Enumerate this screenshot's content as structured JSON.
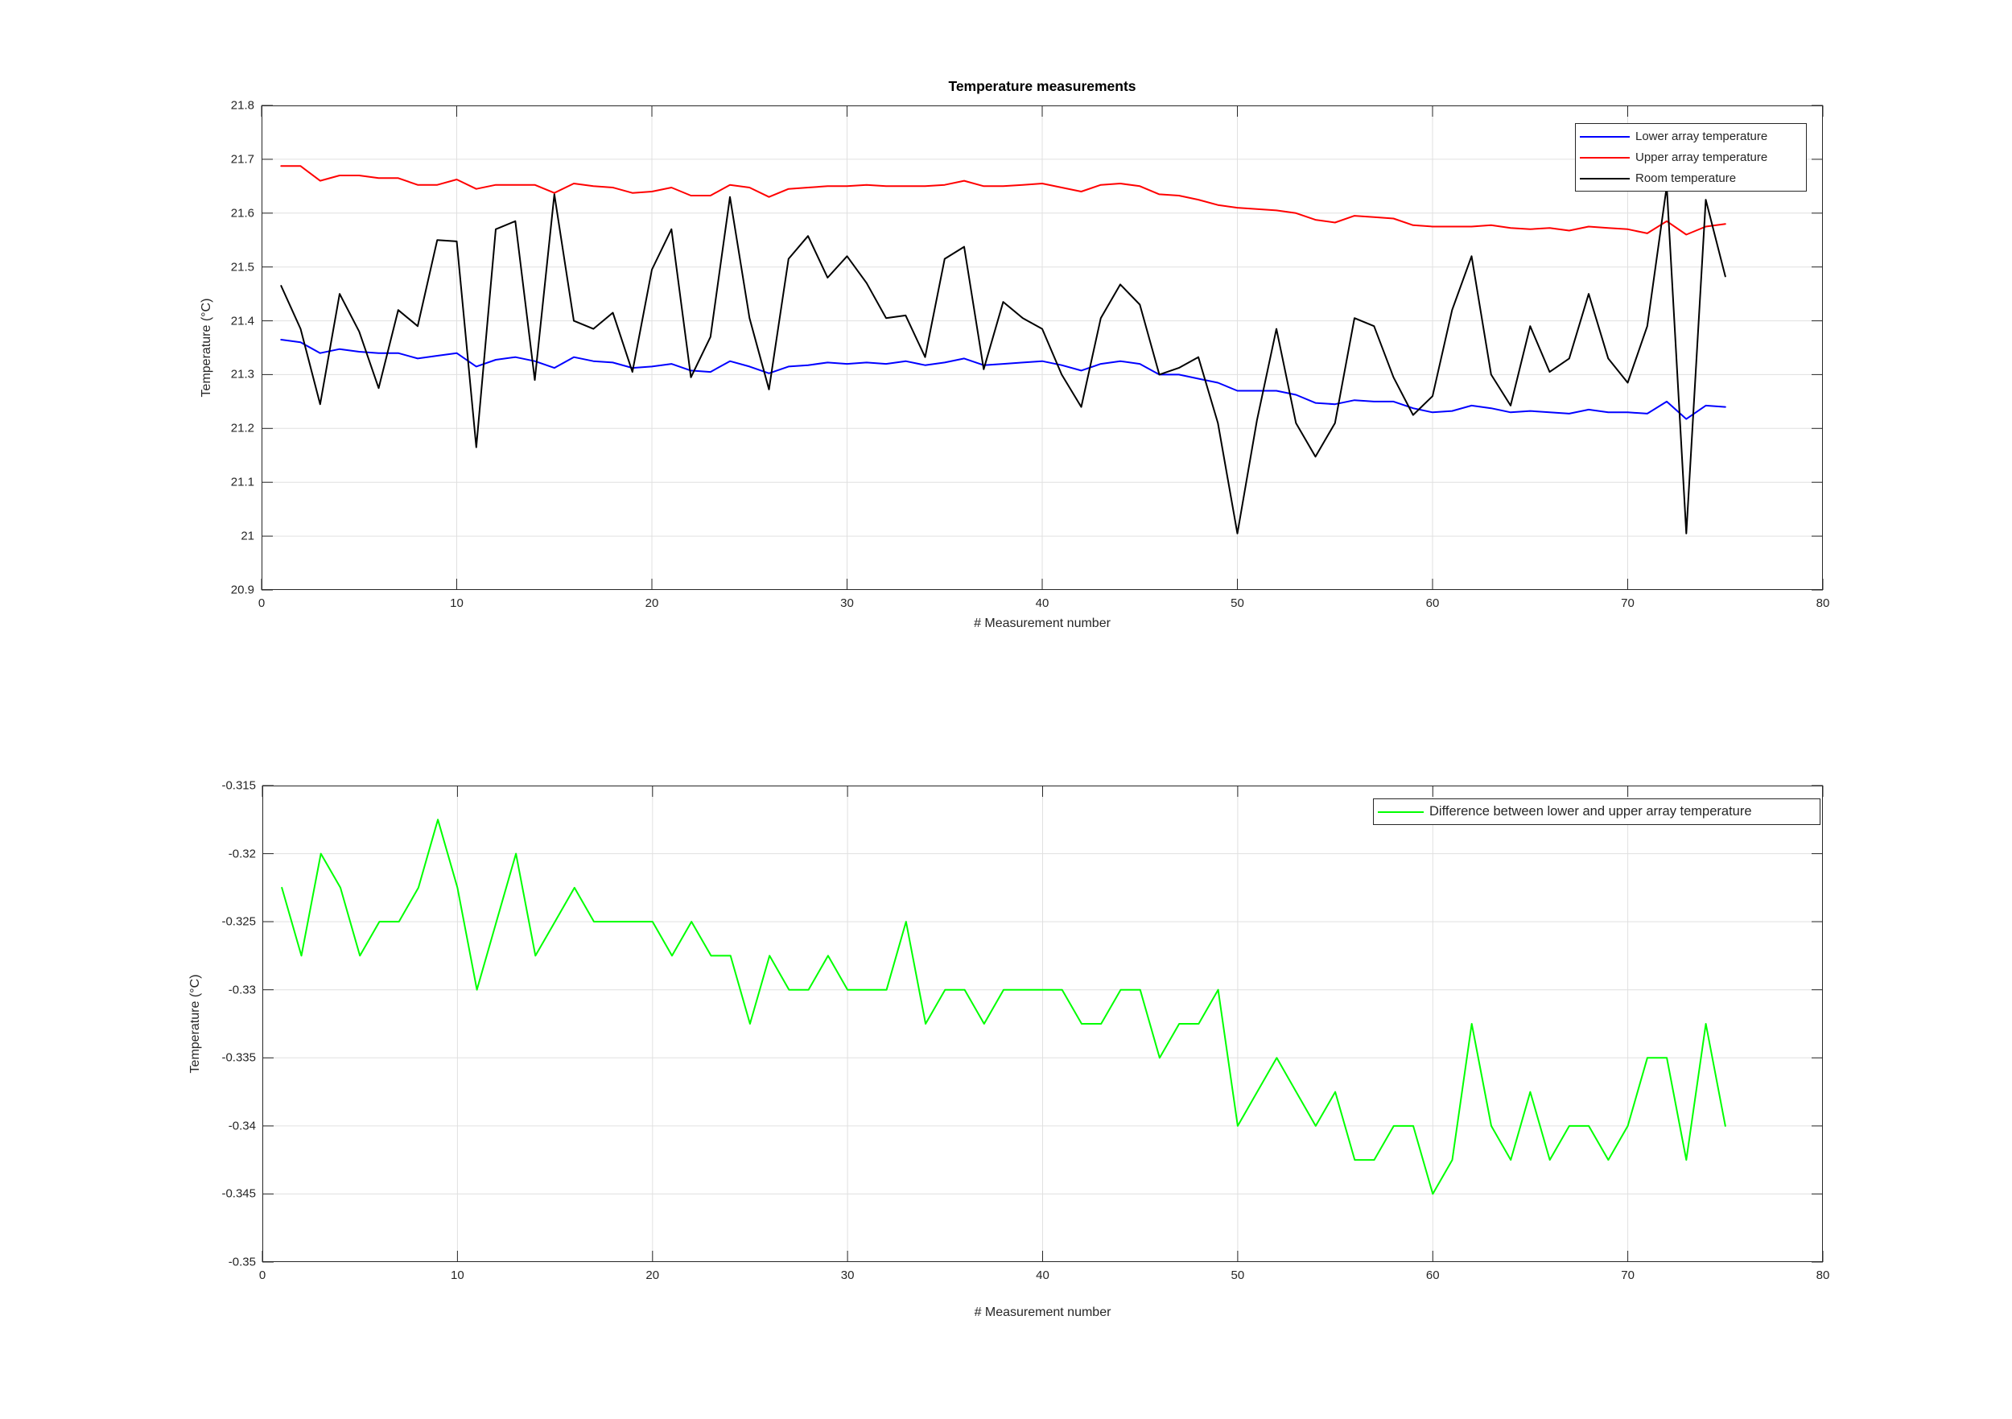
{
  "style": {
    "background": "#ffffff",
    "grid_color": "#e0e0e0",
    "axis_color": "#262626",
    "text_color": "#262626",
    "lower_array_color": "#0000ff",
    "upper_array_color": "#ff0000",
    "room_color": "#000000",
    "difference_color": "#00ff00"
  },
  "chart_data": [
    {
      "type": "line",
      "title": "Temperature measurements",
      "xlabel": "# Measurement number",
      "ylabel": "Temperature (°C)",
      "xlim": [
        0,
        80
      ],
      "ylim": [
        20.9,
        21.8
      ],
      "grid": true,
      "legend_position": "top-right",
      "xticks": [
        0,
        10,
        20,
        30,
        40,
        50,
        60,
        70,
        80
      ],
      "xticklabels": [
        "0",
        "10",
        "20",
        "30",
        "40",
        "50",
        "60",
        "70",
        "80"
      ],
      "yticks": [
        20.9,
        21.0,
        21.1,
        21.2,
        21.3,
        21.4,
        21.5,
        21.6,
        21.7,
        21.8
      ],
      "yticklabels": [
        "20.9",
        "21",
        "21.1",
        "21.2",
        "21.3",
        "21.4",
        "21.5",
        "21.6",
        "21.7",
        "21.8"
      ],
      "x_start": 1,
      "series": [
        {
          "name": "Lower array temperature",
          "color": "#0000ff",
          "values": [
            21.365,
            21.36,
            21.34,
            21.3475,
            21.3425,
            21.34,
            21.34,
            21.33,
            21.335,
            21.34,
            21.315,
            21.3275,
            21.3325,
            21.325,
            21.3125,
            21.3325,
            21.325,
            21.3225,
            21.3125,
            21.315,
            21.32,
            21.3075,
            21.305,
            21.325,
            21.315,
            21.3025,
            21.315,
            21.3175,
            21.3225,
            21.32,
            21.3225,
            21.32,
            21.325,
            21.3175,
            21.3225,
            21.33,
            21.3175,
            21.32,
            21.3225,
            21.325,
            21.3175,
            21.3075,
            21.32,
            21.325,
            21.32,
            21.3,
            21.3,
            21.2925,
            21.285,
            21.27,
            21.27,
            21.27,
            21.2625,
            21.2475,
            21.245,
            21.2525,
            21.25,
            21.25,
            21.2375,
            21.23,
            21.2325,
            21.2425,
            21.2375,
            21.23,
            21.2325,
            21.23,
            21.2275,
            21.235,
            21.23,
            21.23,
            21.2275,
            21.25,
            21.2175,
            21.2425,
            21.24
          ]
        },
        {
          "name": "Upper array temperature",
          "color": "#ff0000",
          "values": [
            21.6875,
            21.6875,
            21.66,
            21.67,
            21.67,
            21.665,
            21.665,
            21.6525,
            21.6525,
            21.6625,
            21.645,
            21.6525,
            21.6525,
            21.6525,
            21.6375,
            21.655,
            21.65,
            21.6475,
            21.6375,
            21.64,
            21.6475,
            21.6325,
            21.6325,
            21.6525,
            21.6475,
            21.63,
            21.645,
            21.6475,
            21.65,
            21.65,
            21.6525,
            21.65,
            21.65,
            21.65,
            21.6525,
            21.66,
            21.65,
            21.65,
            21.6525,
            21.655,
            21.6475,
            21.64,
            21.6525,
            21.655,
            21.65,
            21.635,
            21.6325,
            21.625,
            21.615,
            21.61,
            21.6075,
            21.605,
            21.6,
            21.5875,
            21.5825,
            21.595,
            21.5925,
            21.59,
            21.5775,
            21.575,
            21.575,
            21.575,
            21.5775,
            21.5725,
            21.57,
            21.5725,
            21.5675,
            21.575,
            21.5725,
            21.57,
            21.5625,
            21.585,
            21.56,
            21.575,
            21.58
          ]
        },
        {
          "name": "Room temperature",
          "color": "#000000",
          "values": [
            21.465,
            21.385,
            21.245,
            21.45,
            21.38,
            21.275,
            21.42,
            21.39,
            21.55,
            21.5475,
            21.165,
            21.57,
            21.585,
            21.29,
            21.635,
            21.4,
            21.385,
            21.415,
            21.305,
            21.495,
            21.57,
            21.295,
            21.37,
            21.63,
            21.405,
            21.2725,
            21.515,
            21.5575,
            21.48,
            21.52,
            21.47,
            21.405,
            21.41,
            21.3325,
            21.515,
            21.5375,
            21.31,
            21.435,
            21.405,
            21.385,
            21.3,
            21.24,
            21.405,
            21.4675,
            21.43,
            21.3,
            21.3125,
            21.3325,
            21.21,
            21.005,
            21.215,
            21.385,
            21.21,
            21.1475,
            21.21,
            21.405,
            21.39,
            21.295,
            21.225,
            21.26,
            21.42,
            21.52,
            21.3,
            21.2425,
            21.39,
            21.305,
            21.33,
            21.45,
            21.33,
            21.285,
            21.39,
            21.65,
            21.005,
            21.625,
            21.4825
          ]
        }
      ]
    },
    {
      "type": "line",
      "title": "",
      "xlabel": "# Measurement number",
      "ylabel": "Temperature (°C)",
      "xlim": [
        0,
        80
      ],
      "ylim": [
        -0.35,
        -0.315
      ],
      "grid": true,
      "legend_position": "top-right",
      "xticks": [
        0,
        10,
        20,
        30,
        40,
        50,
        60,
        70,
        80
      ],
      "xticklabels": [
        "0",
        "10",
        "20",
        "30",
        "40",
        "50",
        "60",
        "70",
        "80"
      ],
      "yticks": [
        -0.35,
        -0.345,
        -0.34,
        -0.335,
        -0.33,
        -0.325,
        -0.32,
        -0.315
      ],
      "yticklabels": [
        "-0.35",
        "-0.345",
        "-0.34",
        "-0.335",
        "-0.33",
        "-0.325",
        "-0.32",
        "-0.315"
      ],
      "x_start": 1,
      "series": [
        {
          "name": "Difference between lower and upper array temperature",
          "color": "#00ff00",
          "values": [
            -0.3225,
            -0.3275,
            -0.32,
            -0.3225,
            -0.3275,
            -0.325,
            -0.325,
            -0.3225,
            -0.3175,
            -0.3225,
            -0.33,
            -0.325,
            -0.32,
            -0.3275,
            -0.325,
            -0.3225,
            -0.325,
            -0.325,
            -0.325,
            -0.325,
            -0.3275,
            -0.325,
            -0.3275,
            -0.3275,
            -0.3325,
            -0.3275,
            -0.33,
            -0.33,
            -0.3275,
            -0.33,
            -0.33,
            -0.33,
            -0.325,
            -0.3325,
            -0.33,
            -0.33,
            -0.3325,
            -0.33,
            -0.33,
            -0.33,
            -0.33,
            -0.3325,
            -0.3325,
            -0.33,
            -0.33,
            -0.335,
            -0.3325,
            -0.3325,
            -0.33,
            -0.34,
            -0.3375,
            -0.335,
            -0.3375,
            -0.34,
            -0.3375,
            -0.3425,
            -0.3425,
            -0.34,
            -0.34,
            -0.345,
            -0.3425,
            -0.3325,
            -0.34,
            -0.3425,
            -0.3375,
            -0.3425,
            -0.34,
            -0.34,
            -0.3425,
            -0.34,
            -0.335,
            -0.335,
            -0.3425,
            -0.3325,
            -0.34
          ]
        }
      ]
    }
  ]
}
